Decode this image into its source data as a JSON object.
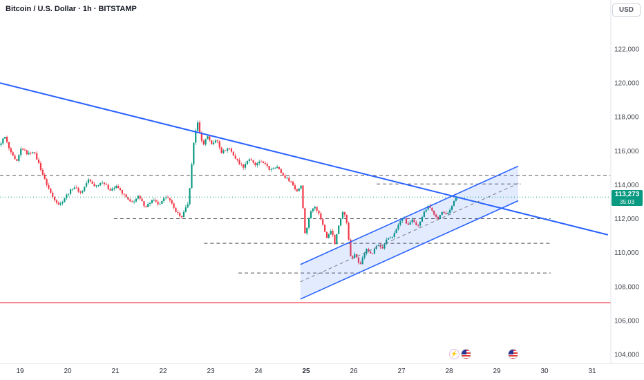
{
  "header": {
    "symbol_title": "Bitcoin / U.S. Dollar · 1h · BITSTAMP",
    "currency_button": "USD"
  },
  "price_axis": {
    "tick_labels": [
      "122,000",
      "120,000",
      "118,000",
      "116,000",
      "114,000",
      "112,000",
      "110,000",
      "108,000",
      "106,000",
      "104,000"
    ],
    "tick_values": [
      122000,
      120000,
      118000,
      116000,
      114000,
      112000,
      110000,
      108000,
      106000,
      104000
    ],
    "current_price": "113,273",
    "countdown": "35:03",
    "badge_color": "#089981"
  },
  "time_axis": {
    "labels": [
      "19",
      "20",
      "21",
      "22",
      "23",
      "24",
      "25",
      "26",
      "27",
      "28",
      "29",
      "30",
      "31"
    ],
    "emphasized_label": "25"
  },
  "chart_data": {
    "type": "candlestick",
    "title": "Bitcoin / U.S. Dollar",
    "interval": "1h",
    "exchange": "BITSTAMP",
    "quote_currency": "USD",
    "last_price": 113273,
    "y_axis_range": [
      103500,
      123200
    ],
    "grid": false,
    "price_path": [
      [
        18.58,
        116300
      ],
      [
        18.7,
        116850
      ],
      [
        18.82,
        115900
      ],
      [
        18.95,
        115300
      ],
      [
        19.05,
        116200
      ],
      [
        19.18,
        115800
      ],
      [
        19.3,
        116000
      ],
      [
        19.42,
        115200
      ],
      [
        19.55,
        114200
      ],
      [
        19.7,
        113300
      ],
      [
        19.85,
        112800
      ],
      [
        20,
        113400
      ],
      [
        20.15,
        113900
      ],
      [
        20.3,
        113500
      ],
      [
        20.45,
        114300
      ],
      [
        20.6,
        113900
      ],
      [
        20.75,
        114200
      ],
      [
        20.9,
        113700
      ],
      [
        21.05,
        113900
      ],
      [
        21.2,
        113400
      ],
      [
        21.35,
        112900
      ],
      [
        21.5,
        113300
      ],
      [
        21.65,
        112700
      ],
      [
        21.8,
        113100
      ],
      [
        21.95,
        112800
      ],
      [
        22.1,
        113400
      ],
      [
        22.25,
        112600
      ],
      [
        22.4,
        112050
      ],
      [
        22.55,
        112900
      ],
      [
        22.68,
        117000
      ],
      [
        22.75,
        117650
      ],
      [
        22.85,
        116300
      ],
      [
        22.95,
        116900
      ],
      [
        23.05,
        116350
      ],
      [
        23.15,
        116700
      ],
      [
        23.25,
        115900
      ],
      [
        23.4,
        116200
      ],
      [
        23.55,
        115500
      ],
      [
        23.7,
        115050
      ],
      [
        23.82,
        115550
      ],
      [
        23.95,
        115150
      ],
      [
        24.1,
        115400
      ],
      [
        24.25,
        114900
      ],
      [
        24.4,
        115100
      ],
      [
        24.55,
        114500
      ],
      [
        24.7,
        114200
      ],
      [
        24.82,
        113600
      ],
      [
        24.92,
        114000
      ],
      [
        25,
        111000
      ],
      [
        25.1,
        112300
      ],
      [
        25.2,
        112800
      ],
      [
        25.32,
        112100
      ],
      [
        25.45,
        110900
      ],
      [
        25.55,
        111400
      ],
      [
        25.62,
        110500
      ],
      [
        25.72,
        111800
      ],
      [
        25.8,
        112500
      ],
      [
        25.88,
        111700
      ],
      [
        25.96,
        109600
      ],
      [
        26.05,
        109900
      ],
      [
        26.15,
        109300
      ],
      [
        26.28,
        110200
      ],
      [
        26.4,
        109900
      ],
      [
        26.52,
        110500
      ],
      [
        26.62,
        110200
      ],
      [
        26.72,
        110800
      ],
      [
        26.85,
        111000
      ],
      [
        26.95,
        111600
      ],
      [
        27.05,
        112100
      ],
      [
        27.15,
        111600
      ],
      [
        27.25,
        111900
      ],
      [
        27.35,
        111500
      ],
      [
        27.48,
        112300
      ],
      [
        27.58,
        112800
      ],
      [
        27.68,
        112400
      ],
      [
        27.78,
        111900
      ],
      [
        27.88,
        112500
      ],
      [
        27.98,
        112200
      ],
      [
        28.05,
        112600
      ],
      [
        28.12,
        113100
      ],
      [
        28.2,
        113273
      ]
    ],
    "overlays": {
      "descending_trendline": {
        "from": [
          18.58,
          120000
        ],
        "to": [
          31.33,
          111050
        ],
        "color": "#2962ff",
        "width": 2
      },
      "ascending_channel": {
        "upper_from": [
          24.88,
          109300
        ],
        "upper_to": [
          29.45,
          115100
        ],
        "lower_from": [
          24.88,
          107260
        ],
        "lower_to": [
          29.45,
          113060
        ],
        "color": "#2962ff",
        "fill_opacity": 0.13,
        "median_dashed": true,
        "median_color": "#787b86"
      },
      "dashed_levels": [
        {
          "price": 114550,
          "from_day": 18.58,
          "to_day": 31.38
        },
        {
          "price": 114050,
          "from_day": 26.48,
          "to_day": 29.5
        },
        {
          "price": 112000,
          "from_day": 20.97,
          "to_day": 30.13
        },
        {
          "price": 110550,
          "from_day": 22.86,
          "to_day": 30.13
        },
        {
          "price": 108800,
          "from_day": 23.58,
          "to_day": 30.13
        }
      ],
      "horizontal_line": {
        "price": 107050,
        "from_day": 18.58,
        "to_day": 31.39,
        "color": "#f23645"
      },
      "current_price_line": {
        "price": 113273,
        "color": "#089981",
        "style": "dotted"
      }
    },
    "colors": {
      "up": "#089981",
      "down": "#f23645",
      "trend": "#2962ff",
      "dashed": "#4f5258",
      "separator": "#e0e3eb",
      "axis_text": "#44484f"
    }
  },
  "events": [
    {
      "icon": "lightning-icon",
      "day": 28.1
    },
    {
      "icon": "us-flag-icon",
      "day": 28.35
    },
    {
      "icon": "us-flag-icon",
      "day": 29.33
    }
  ]
}
